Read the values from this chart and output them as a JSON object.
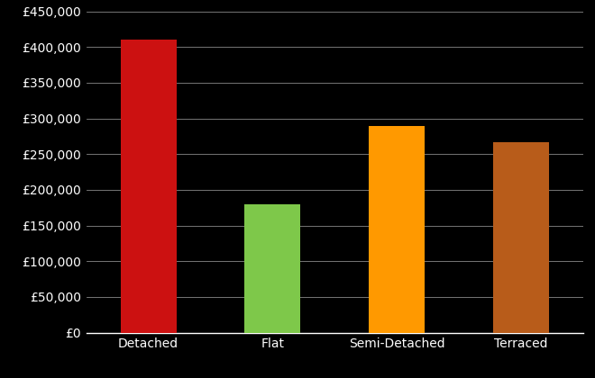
{
  "categories": [
    "Detached",
    "Flat",
    "Semi-Detached",
    "Terraced"
  ],
  "values": [
    410000,
    180000,
    290000,
    267000
  ],
  "bar_colors": [
    "#cc1111",
    "#7ec84a",
    "#ff9900",
    "#b85c1a"
  ],
  "background_color": "#000000",
  "text_color": "#ffffff",
  "grid_color": "#888888",
  "ylim": [
    0,
    450000
  ],
  "ytick_step": 50000,
  "bar_width": 0.45,
  "tick_fontsize": 10
}
